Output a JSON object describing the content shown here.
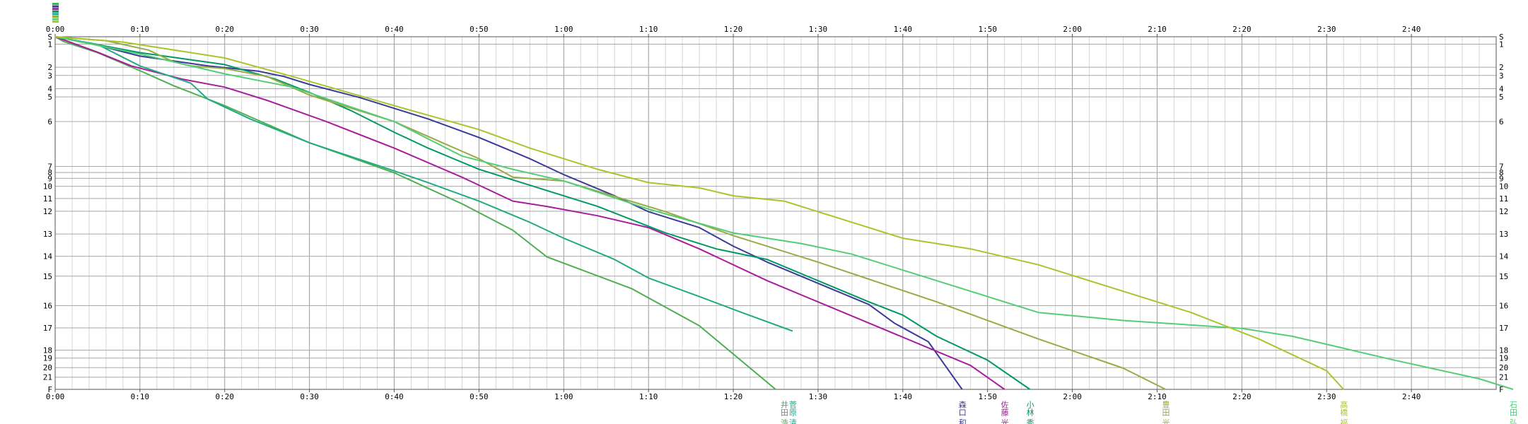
{
  "chart_data": {
    "type": "line",
    "title": "",
    "xlabel": "",
    "ylabel": "",
    "x_unit": "minutes",
    "xlim": [
      0,
      170
    ],
    "x_tick_labels": [
      "0:00",
      "0:10",
      "0:20",
      "0:30",
      "0:40",
      "0:50",
      "1:00",
      "1:10",
      "1:20",
      "1:30",
      "1:40",
      "1:50",
      "2:00",
      "2:10",
      "2:20",
      "2:30",
      "2:40"
    ],
    "x_tick_values": [
      0,
      10,
      20,
      30,
      40,
      50,
      60,
      70,
      80,
      90,
      100,
      110,
      120,
      130,
      140,
      150,
      160
    ],
    "checkpoints": [
      "S",
      "1",
      "2",
      "3",
      "4",
      "5",
      "6",
      "7",
      "8",
      "9",
      "10",
      "11",
      "12",
      "13",
      "14",
      "15",
      "16",
      "17",
      "18",
      "19",
      "20",
      "21",
      "F"
    ],
    "checkpoint_positions": [
      0,
      2.8,
      11.5,
      14.6,
      19.6,
      22.7,
      32,
      48.9,
      51.2,
      53.4,
      56.4,
      61,
      65.8,
      74.4,
      82.8,
      90.3,
      101.4,
      109.8,
      118.2,
      121.2,
      124.8,
      128.4,
      133
    ],
    "grid": true,
    "legend": "names printed below the finish line",
    "series": [
      {
        "name": "井田 浩",
        "color": "#4caf50",
        "label_x": 86,
        "x": [
          0,
          1,
          5,
          10,
          14,
          20,
          30,
          40,
          48,
          54,
          58,
          68,
          76,
          85
        ],
        "y": [
          0,
          1.8,
          6,
          12.8,
          18.5,
          26,
          40,
          51.3,
          63,
          73,
          83,
          95,
          109,
          133
        ]
      },
      {
        "name": "森口 和茂",
        "color": "#3a3a9a",
        "label_x": 107,
        "x": [
          0,
          4,
          10,
          18,
          24,
          27,
          30,
          36,
          40,
          44,
          50,
          56,
          60,
          66,
          70,
          76,
          80,
          84,
          90,
          96,
          99,
          103,
          107
        ],
        "y": [
          0,
          2.4,
          7.3,
          11,
          13,
          15,
          18,
          23,
          27,
          31,
          38,
          46,
          52,
          60,
          66,
          72,
          79,
          85,
          93,
          101,
          108,
          115,
          133
        ]
      },
      {
        "name": "佐藤 光彦",
        "color": "#a81c9e",
        "label_x": 112,
        "x": [
          0,
          5,
          9,
          15,
          20,
          25,
          32,
          40,
          48,
          54,
          58,
          64,
          70,
          76,
          84,
          90,
          96,
          102,
          108,
          112
        ],
        "y": [
          0,
          5.8,
          11,
          16,
          19,
          24,
          32,
          42,
          53,
          62,
          64,
          67.5,
          72,
          80,
          92,
          100,
          108,
          116,
          124,
          133
        ]
      },
      {
        "name": "小林 秀悠",
        "color": "#009966",
        "label_x": 115,
        "x": [
          0,
          10,
          20,
          26,
          30,
          35,
          40,
          44,
          50,
          56,
          60,
          64,
          72,
          78,
          84,
          90,
          96,
          100,
          104,
          110,
          115
        ],
        "y": [
          0,
          6,
          10.5,
          16,
          21,
          28,
          36,
          42,
          50,
          56,
          60,
          64,
          74,
          80,
          84,
          92,
          100,
          105,
          113,
          122,
          133
        ]
      },
      {
        "name": "菅原 清二",
        "color": "#22aa88",
        "label_x": 87,
        "x": [
          0,
          5,
          10,
          16,
          18,
          23,
          30,
          40,
          44,
          50,
          56,
          60,
          66,
          70,
          76,
          81,
          87
        ],
        "y": [
          0,
          2.9,
          11,
          17.5,
          23.5,
          31,
          40,
          50.6,
          55,
          62,
          70,
          76,
          84,
          91,
          98,
          104,
          111
        ]
      },
      {
        "name": "豊田 光弘",
        "color": "#99aa44",
        "label_x": 131,
        "x": [
          0,
          6,
          11,
          14,
          16,
          20,
          25,
          30,
          40,
          50,
          54,
          60,
          72,
          80,
          90,
          104,
          116,
          126,
          131
        ],
        "y": [
          0,
          1.5,
          5,
          9.5,
          11,
          12,
          15,
          22,
          32,
          46,
          53,
          54.4,
          66,
          75,
          85,
          100,
          114,
          125,
          133
        ]
      },
      {
        "name": "石田 弘",
        "color": "#55cc77",
        "label_x": 172,
        "x": [
          0,
          10,
          20,
          28,
          40,
          48,
          54,
          60,
          70,
          80,
          88,
          94,
          104,
          116,
          126,
          140,
          146,
          158,
          168,
          172
        ],
        "y": [
          0,
          6.5,
          14,
          19,
          32,
          45,
          50,
          54.4,
          65,
          74,
          78,
          82,
          92,
          104,
          107,
          110,
          113,
          122,
          129,
          133
        ]
      },
      {
        "name": "高橋 福",
        "color": "#aac429",
        "label_x": 152,
        "x": [
          0,
          8,
          20,
          28,
          40,
          50,
          56,
          64,
          70,
          76,
          80,
          86,
          90,
          100,
          108,
          116,
          124,
          134,
          142,
          150,
          152
        ],
        "y": [
          0,
          2,
          8,
          15,
          26,
          35,
          42,
          50,
          55,
          57,
          60,
          62,
          66,
          76,
          80,
          86,
          94,
          104,
          114,
          126,
          133
        ]
      }
    ]
  }
}
